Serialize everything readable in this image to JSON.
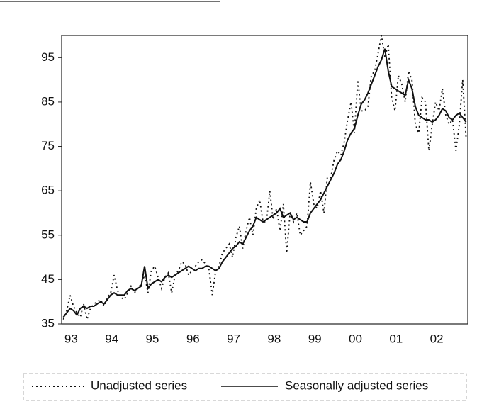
{
  "chart_data": {
    "type": "line",
    "categories": [
      "93",
      null,
      null,
      null,
      null,
      null,
      null,
      null,
      null,
      null,
      null,
      null,
      "94",
      null,
      null,
      null,
      null,
      null,
      null,
      null,
      null,
      null,
      null,
      null,
      "95",
      null,
      null,
      null,
      null,
      null,
      null,
      null,
      null,
      null,
      null,
      null,
      "96",
      null,
      null,
      null,
      null,
      null,
      null,
      null,
      null,
      null,
      null,
      null,
      "97",
      null,
      null,
      null,
      null,
      null,
      null,
      null,
      null,
      null,
      null,
      null,
      "98",
      null,
      null,
      null,
      null,
      null,
      null,
      null,
      null,
      null,
      null,
      null,
      "99",
      null,
      null,
      null,
      null,
      null,
      null,
      null,
      null,
      null,
      null,
      null,
      "00",
      null,
      null,
      null,
      null,
      null,
      null,
      null,
      null,
      null,
      null,
      null,
      "01",
      null,
      null,
      null,
      null,
      null,
      null,
      null,
      null,
      null,
      null,
      null,
      "02",
      null,
      null,
      null,
      null,
      null,
      null,
      null,
      null,
      null,
      null,
      null
    ],
    "series": [
      {
        "name": "Unadjusted series",
        "color": "#111111",
        "style": "dotted",
        "values": [
          36,
          38,
          41.5,
          39,
          37.5,
          36.5,
          39.5,
          36,
          38.5,
          39.5,
          40,
          40.5,
          39,
          41,
          42,
          46,
          42.5,
          41,
          40.5,
          42,
          43.5,
          42,
          43,
          44,
          46,
          42,
          47,
          48,
          45.5,
          43,
          45.5,
          46.5,
          42,
          46,
          47,
          49,
          48.5,
          46,
          47,
          48,
          49,
          49.5,
          48.5,
          47.5,
          41.5,
          47,
          48,
          51,
          52,
          53,
          50,
          54.5,
          57,
          52,
          56,
          59,
          55,
          61,
          63,
          58,
          58,
          65,
          58.5,
          61,
          56,
          62,
          51,
          60,
          58,
          60,
          55,
          56,
          57,
          67,
          62,
          61,
          65,
          60,
          68,
          68,
          72,
          74,
          73,
          76,
          81,
          85,
          78,
          90,
          83,
          83,
          84,
          91,
          92,
          96,
          100,
          95,
          98,
          86,
          83,
          91,
          89,
          85,
          92,
          90,
          80,
          78,
          86,
          85,
          74,
          80,
          85,
          83,
          88,
          82,
          80,
          81,
          74,
          80,
          90,
          77
        ]
      },
      {
        "name": "Seasonally adjusted series",
        "color": "#111111",
        "style": "solid",
        "values": [
          36.5,
          37.5,
          38.5,
          38,
          37,
          38.5,
          39,
          38.5,
          39,
          39,
          39.5,
          40,
          39.5,
          40.5,
          41.5,
          42,
          41.5,
          41.5,
          41.5,
          42.5,
          43,
          42.5,
          43,
          43.5,
          48,
          43,
          44,
          44.5,
          45,
          44.5,
          45.5,
          46,
          45.5,
          46,
          46.5,
          47,
          47.5,
          48,
          47.5,
          47,
          47.5,
          47.5,
          48,
          48,
          47.5,
          47,
          47.5,
          49,
          50,
          51,
          52,
          52.5,
          53.5,
          53,
          54.5,
          56,
          57,
          59,
          58.5,
          58,
          58.5,
          59,
          59.5,
          60,
          61,
          59,
          59.5,
          60,
          58.5,
          59,
          58.5,
          58,
          58,
          60,
          61,
          62,
          63,
          64.5,
          66,
          67.5,
          69,
          71,
          72,
          74,
          76.5,
          78,
          79,
          82,
          84.5,
          85.5,
          87,
          89,
          91,
          93,
          94.5,
          97,
          92,
          88.5,
          88,
          87.5,
          87,
          86.5,
          90,
          88,
          84,
          82,
          81.5,
          81,
          81,
          80.5,
          81,
          82,
          83.5,
          83,
          81.5,
          81,
          82,
          82.5,
          81.5,
          80.5
        ]
      }
    ],
    "ylim": [
      35,
      100
    ],
    "yticks": [
      35,
      45,
      55,
      65,
      75,
      85,
      95
    ],
    "legend": "bottom"
  }
}
